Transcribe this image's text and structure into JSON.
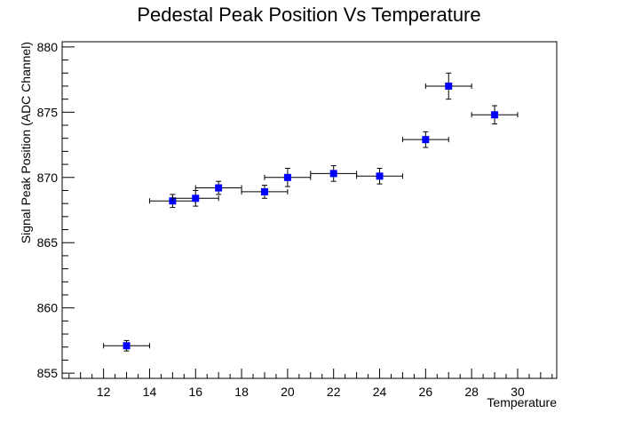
{
  "chart_data": {
    "type": "scatter",
    "title": "Pedestal Peak Position Vs Temperature",
    "xlabel": "Temperature",
    "ylabel": "Signal Peak Position (ADC Channel)",
    "xlim": [
      10.2,
      31.7
    ],
    "ylim": [
      854.6,
      880.4
    ],
    "xticks": [
      12,
      14,
      16,
      18,
      20,
      22,
      24,
      26,
      28,
      30
    ],
    "yticks": [
      855,
      860,
      865,
      870,
      875,
      880
    ],
    "marker_color": "#0000ff",
    "points": [
      {
        "x": 13,
        "y": 857.1,
        "xerr": 1.0,
        "yerr": 0.4
      },
      {
        "x": 15,
        "y": 868.2,
        "xerr": 1.0,
        "yerr": 0.5
      },
      {
        "x": 16,
        "y": 868.4,
        "xerr": 1.0,
        "yerr": 0.6
      },
      {
        "x": 17,
        "y": 869.2,
        "xerr": 1.0,
        "yerr": 0.5
      },
      {
        "x": 19,
        "y": 868.9,
        "xerr": 1.0,
        "yerr": 0.5
      },
      {
        "x": 20,
        "y": 870.0,
        "xerr": 1.0,
        "yerr": 0.7
      },
      {
        "x": 22,
        "y": 870.3,
        "xerr": 1.0,
        "yerr": 0.6
      },
      {
        "x": 24,
        "y": 870.1,
        "xerr": 1.0,
        "yerr": 0.6
      },
      {
        "x": 26,
        "y": 872.9,
        "xerr": 1.0,
        "yerr": 0.6
      },
      {
        "x": 27,
        "y": 877.0,
        "xerr": 1.0,
        "yerr": 1.0
      },
      {
        "x": 29,
        "y": 874.8,
        "xerr": 1.0,
        "yerr": 0.7
      }
    ]
  }
}
